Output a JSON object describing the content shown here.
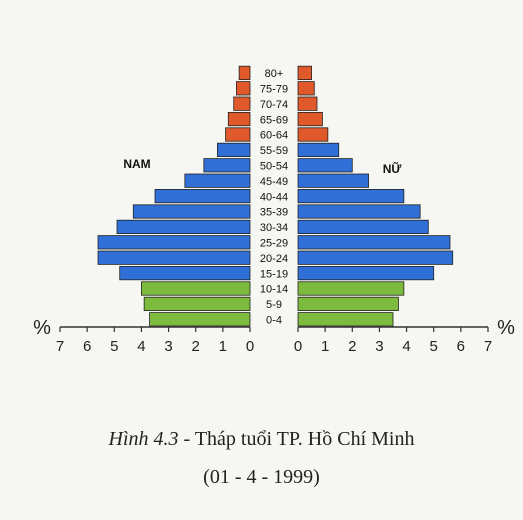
{
  "chart_data": {
    "type": "bar",
    "subtype": "population-pyramid",
    "unit": "%",
    "left_label": "NAM",
    "right_label": "NỮ",
    "categories": [
      "0-4",
      "5-9",
      "10-14",
      "15-19",
      "20-24",
      "25-29",
      "30-34",
      "35-39",
      "40-44",
      "45-49",
      "50-54",
      "55-59",
      "60-64",
      "65-69",
      "70-74",
      "75-79",
      "80+"
    ],
    "series": [
      {
        "name": "NAM",
        "side": "left",
        "values": [
          3.7,
          3.9,
          4.0,
          4.8,
          5.6,
          5.6,
          4.9,
          4.3,
          3.5,
          2.4,
          1.7,
          1.2,
          0.9,
          0.8,
          0.6,
          0.5,
          0.4
        ]
      },
      {
        "name": "NỮ",
        "side": "right",
        "values": [
          3.5,
          3.7,
          3.9,
          5.0,
          5.7,
          5.6,
          4.8,
          4.5,
          3.9,
          2.6,
          2.0,
          1.5,
          1.1,
          0.9,
          0.7,
          0.6,
          0.5
        ]
      }
    ],
    "group_colors": {
      "0-14": "#7dbb3e",
      "15-59": "#2f6fd6",
      "60+": "#e0592a"
    },
    "xlim": [
      0,
      7
    ],
    "x_ticks": [
      "0",
      "1",
      "2",
      "3",
      "4",
      "5",
      "6",
      "7"
    ]
  },
  "caption": {
    "figure": "Hình 4.3",
    "text": " - Tháp tuổi TP. Hồ Chí Minh",
    "date": "(01 - 4 - 1999)"
  }
}
